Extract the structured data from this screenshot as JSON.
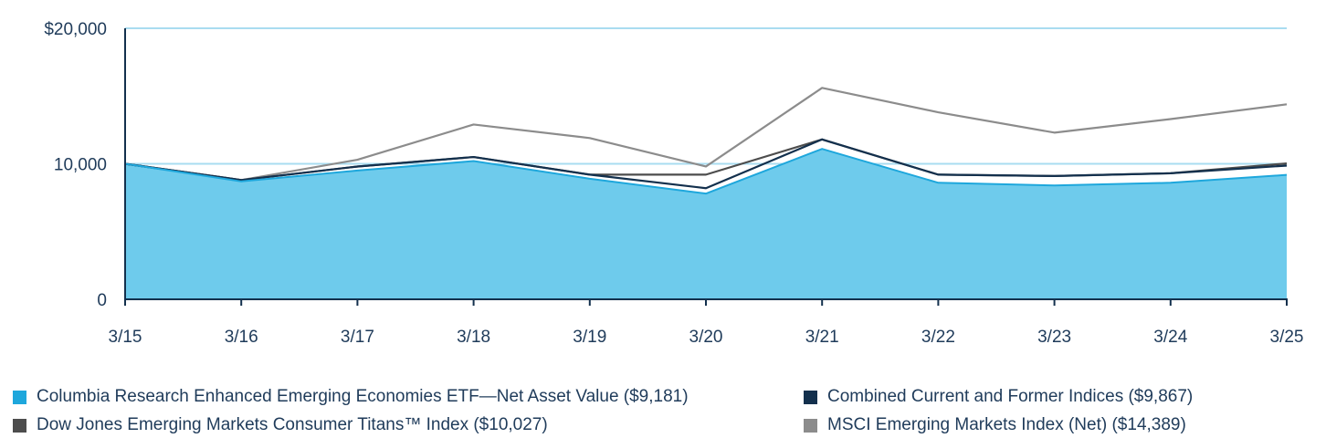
{
  "chart_data": {
    "type": "area",
    "x": [
      "3/15",
      "3/16",
      "3/17",
      "3/18",
      "3/19",
      "3/20",
      "3/21",
      "3/22",
      "3/23",
      "3/24",
      "3/25"
    ],
    "y_ticks": [
      {
        "value": 0,
        "label": "0"
      },
      {
        "value": 10000,
        "label": "10,000"
      },
      {
        "value": 20000,
        "label": "$20,000"
      }
    ],
    "ylim": [
      0,
      20000
    ],
    "grid": true,
    "legend_position": "bottom",
    "series": [
      {
        "name": "MSCI Emerging Markets Index (Net)",
        "legend_label": "MSCI Emerging Markets Index (Net) ($14,389)",
        "color": "#8c8c8c",
        "style": "line",
        "values": [
          10000,
          8800,
          10300,
          12900,
          11900,
          9800,
          15600,
          13800,
          12300,
          13300,
          14389
        ]
      },
      {
        "name": "Dow Jones Emerging Markets Consumer Titans™ Index",
        "legend_label": "Dow Jones Emerging Markets Consumer Titans™ Index ($10,027)",
        "color": "#4d4d4d",
        "style": "line",
        "values": [
          10000,
          8800,
          9800,
          10500,
          9200,
          9200,
          11800,
          9200,
          9100,
          9300,
          10027
        ]
      },
      {
        "name": "Combined Current and Former Indices",
        "legend_label": "Combined Current and Former Indices ($9,867)",
        "color": "#13304d",
        "style": "line",
        "values": [
          10000,
          8800,
          9800,
          10500,
          9200,
          8200,
          11800,
          9200,
          9100,
          9300,
          9867
        ]
      },
      {
        "name": "Columbia Research Enhanced Emerging Economies ETF—Net Asset Value",
        "legend_label": "Columbia Research Enhanced Emerging Economies ETF—Net Asset Value ($9,181)",
        "color": "#1ea7dc",
        "fill": "#6ecbec",
        "style": "area",
        "values": [
          10000,
          8700,
          9500,
          10200,
          8900,
          7800,
          11100,
          8600,
          8400,
          8600,
          9181
        ]
      }
    ]
  },
  "legend": {
    "items": [
      {
        "label": "Columbia Research Enhanced Emerging Economies ETF—Net Asset Value ($9,181)",
        "color": "#1ea7dc"
      },
      {
        "label": "Combined Current and Former Indices ($9,867)",
        "color": "#13304d"
      },
      {
        "label": "Dow Jones Emerging Markets Consumer Titans™ Index ($10,027)",
        "color": "#4d4d4d"
      },
      {
        "label": "MSCI Emerging Markets Index (Net) ($14,389)",
        "color": "#8c8c8c"
      }
    ]
  },
  "colors": {
    "axis": "#13304d",
    "grid": "#a9dcf0",
    "text": "#1f3b5a"
  }
}
